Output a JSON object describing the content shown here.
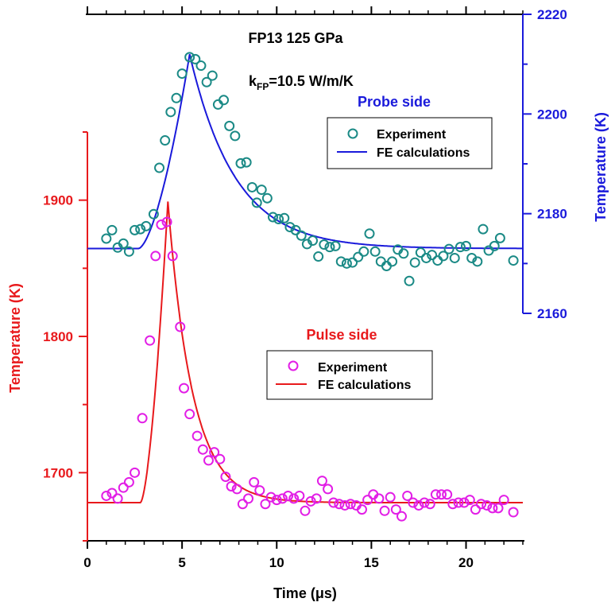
{
  "colors": {
    "pulse": "#e8191c",
    "probe": "#1a1adb",
    "pulse_points": "#e21ee6",
    "probe_points": "#1b8a86",
    "axis": "#000000"
  },
  "chart_data": {
    "type": "scatter",
    "title": "FP13 125 GPa",
    "subtitle": {
      "k": "k",
      "sub": "FP",
      "rest": "=10.5 W/m/K"
    },
    "xlabel": "Time (μs)",
    "xlim": [
      0,
      23
    ],
    "xticks": [
      0,
      5,
      10,
      15,
      20
    ],
    "left_axis": {
      "label": "Temperature (K)",
      "ylim": [
        1650,
        1950
      ],
      "ticks": [
        1700,
        1800,
        1900
      ]
    },
    "right_axis": {
      "label": "Temperature (K)",
      "ylim": [
        2160,
        2220
      ],
      "ticks": [
        2160,
        2180,
        2200,
        2220
      ]
    },
    "groups": [
      {
        "name": "Probe side",
        "axis": "right",
        "legend": {
          "points": "Experiment",
          "line": "FE calculations"
        },
        "experiment": [
          [
            1.0,
            2175.0
          ],
          [
            1.3,
            2176.7
          ],
          [
            1.6,
            2173.2
          ],
          [
            1.9,
            2174.0
          ],
          [
            2.2,
            2172.4
          ],
          [
            2.5,
            2176.7
          ],
          [
            2.8,
            2176.9
          ],
          [
            3.1,
            2177.5
          ],
          [
            3.5,
            2179.9
          ],
          [
            3.8,
            2189.2
          ],
          [
            4.1,
            2194.7
          ],
          [
            4.4,
            2200.4
          ],
          [
            4.7,
            2203.2
          ],
          [
            5.0,
            2208.1
          ],
          [
            5.4,
            2211.4
          ],
          [
            5.7,
            2211.0
          ],
          [
            6.0,
            2209.7
          ],
          [
            6.3,
            2206.4
          ],
          [
            6.6,
            2207.7
          ],
          [
            6.9,
            2201.9
          ],
          [
            7.2,
            2202.8
          ],
          [
            7.5,
            2197.6
          ],
          [
            7.8,
            2195.6
          ],
          [
            8.1,
            2190.1
          ],
          [
            8.4,
            2190.3
          ],
          [
            8.7,
            2185.3
          ],
          [
            8.95,
            2182.2
          ],
          [
            9.2,
            2184.8
          ],
          [
            9.5,
            2183.1
          ],
          [
            9.8,
            2179.3
          ],
          [
            10.1,
            2178.9
          ],
          [
            10.4,
            2179.1
          ],
          [
            10.7,
            2177.3
          ],
          [
            11.0,
            2176.7
          ],
          [
            11.3,
            2175.6
          ],
          [
            11.6,
            2173.9
          ],
          [
            11.9,
            2174.6
          ],
          [
            12.2,
            2171.4
          ],
          [
            12.5,
            2173.8
          ],
          [
            12.8,
            2173.3
          ],
          [
            13.1,
            2173.5
          ],
          [
            13.4,
            2170.4
          ],
          [
            13.7,
            2170.0
          ],
          [
            14.0,
            2170.2
          ],
          [
            14.3,
            2171.3
          ],
          [
            14.6,
            2172.4
          ],
          [
            14.9,
            2176.0
          ],
          [
            15.2,
            2172.4
          ],
          [
            15.5,
            2170.4
          ],
          [
            15.8,
            2169.5
          ],
          [
            16.1,
            2170.4
          ],
          [
            16.4,
            2172.8
          ],
          [
            16.7,
            2172.0
          ],
          [
            17.0,
            2166.5
          ],
          [
            17.3,
            2170.2
          ],
          [
            17.6,
            2172.2
          ],
          [
            17.9,
            2171.1
          ],
          [
            18.2,
            2171.7
          ],
          [
            18.5,
            2170.6
          ],
          [
            18.8,
            2171.5
          ],
          [
            19.1,
            2172.9
          ],
          [
            19.4,
            2171.1
          ],
          [
            19.7,
            2173.3
          ],
          [
            20.0,
            2173.5
          ],
          [
            20.3,
            2171.1
          ],
          [
            20.6,
            2170.4
          ],
          [
            20.9,
            2176.9
          ],
          [
            21.2,
            2172.6
          ],
          [
            21.5,
            2173.5
          ],
          [
            21.8,
            2175.1
          ],
          [
            22.5,
            2170.6
          ]
        ],
        "fe_model": {
          "base": 2173,
          "t0": 2.7,
          "t_peak": 5.4,
          "peak": 2212,
          "tau": 2.4
        }
      },
      {
        "name": "Pulse side",
        "axis": "left",
        "legend": {
          "points": "Experiment",
          "line": "FE calculations"
        },
        "experiment": [
          [
            1.0,
            1683
          ],
          [
            1.3,
            1685
          ],
          [
            1.6,
            1681
          ],
          [
            1.9,
            1689
          ],
          [
            2.2,
            1693
          ],
          [
            2.5,
            1700
          ],
          [
            2.9,
            1740
          ],
          [
            3.3,
            1797
          ],
          [
            3.6,
            1859
          ],
          [
            3.9,
            1882
          ],
          [
            4.2,
            1884
          ],
          [
            4.5,
            1859
          ],
          [
            4.9,
            1807
          ],
          [
            5.1,
            1762
          ],
          [
            5.4,
            1743
          ],
          [
            5.8,
            1727
          ],
          [
            6.1,
            1717
          ],
          [
            6.4,
            1709
          ],
          [
            6.7,
            1715
          ],
          [
            7.0,
            1710
          ],
          [
            7.3,
            1697
          ],
          [
            7.6,
            1690
          ],
          [
            7.9,
            1688
          ],
          [
            8.2,
            1677
          ],
          [
            8.5,
            1681
          ],
          [
            8.8,
            1693
          ],
          [
            9.1,
            1687
          ],
          [
            9.4,
            1677
          ],
          [
            9.7,
            1682
          ],
          [
            10.0,
            1680
          ],
          [
            10.3,
            1681
          ],
          [
            10.6,
            1683
          ],
          [
            10.9,
            1681
          ],
          [
            11.2,
            1683
          ],
          [
            11.5,
            1672
          ],
          [
            11.8,
            1679
          ],
          [
            12.1,
            1681
          ],
          [
            12.4,
            1694
          ],
          [
            12.7,
            1688
          ],
          [
            13.0,
            1678
          ],
          [
            13.3,
            1677
          ],
          [
            13.6,
            1676
          ],
          [
            13.9,
            1677
          ],
          [
            14.2,
            1676
          ],
          [
            14.5,
            1673
          ],
          [
            14.8,
            1680
          ],
          [
            15.1,
            1684
          ],
          [
            15.4,
            1681
          ],
          [
            15.7,
            1672
          ],
          [
            16.0,
            1682
          ],
          [
            16.3,
            1673
          ],
          [
            16.6,
            1668
          ],
          [
            16.9,
            1683
          ],
          [
            17.2,
            1678
          ],
          [
            17.5,
            1676
          ],
          [
            17.8,
            1678
          ],
          [
            18.1,
            1677
          ],
          [
            18.4,
            1684
          ],
          [
            18.7,
            1684
          ],
          [
            19.0,
            1684
          ],
          [
            19.3,
            1677
          ],
          [
            19.6,
            1678
          ],
          [
            19.9,
            1678
          ],
          [
            20.2,
            1680
          ],
          [
            20.5,
            1673
          ],
          [
            20.8,
            1677
          ],
          [
            21.1,
            1676
          ],
          [
            21.4,
            1674
          ],
          [
            21.7,
            1674
          ],
          [
            22.0,
            1680
          ],
          [
            22.5,
            1671
          ]
        ],
        "fe_model": {
          "base": 1678,
          "t0": 2.8,
          "t_peak": 4.25,
          "peak": 1899,
          "tau": 1.3
        }
      }
    ]
  }
}
